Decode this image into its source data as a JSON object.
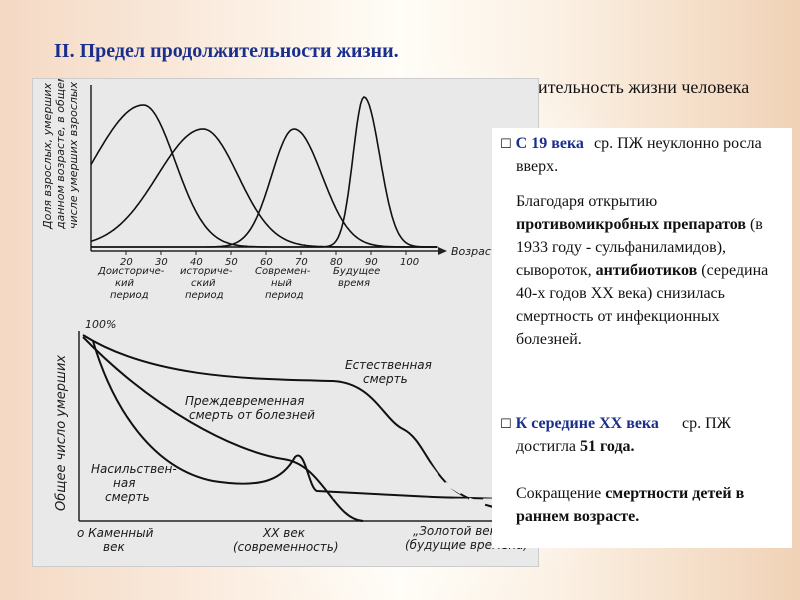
{
  "slide": {
    "title": "II. Предел продолжительности жизни.",
    "subtitle": "Средняя продолжительность жизни человека изменялась:"
  },
  "figure_top": {
    "ylabel": [
      "Доля взрослых, умерших в",
      "данном возрасте, в общем",
      "числе умерших взрослых"
    ],
    "xaxis_label": "Возраст",
    "ticks": [
      "20",
      "30",
      "40",
      "50",
      "60",
      "70",
      "80",
      "90",
      "100"
    ],
    "periods": [
      {
        "l1": "Доисториче-",
        "l2": "кий",
        "l3": "период"
      },
      {
        "l1": "историче-",
        "l2": "ский",
        "l3": "период"
      },
      {
        "l1": "Современ-",
        "l2": "ный",
        "l3": "период"
      },
      {
        "l1": "Будущее",
        "l2": "время",
        "l3": ""
      }
    ],
    "peak_ages": [
      25,
      42,
      68,
      88
    ]
  },
  "figure_bottom": {
    "ymax_label": "100%",
    "ylabel": "Общее число умерших",
    "natural_death": {
      "l1": "Естественная",
      "l2": "смерть"
    },
    "premature_death": {
      "l1": "Преждевременная",
      "l2": "смерть от болезней"
    },
    "violent_death": {
      "l1": "Насильствен-",
      "l2": "ная",
      "l3": "смерть"
    },
    "x_stone": {
      "l1": "о Каменный",
      "l2": "век"
    },
    "x_20c": {
      "l1": "XX век",
      "l2": "(современность)"
    },
    "x_golden": {
      "l1": "„Золотой век\"",
      "l2": "(будущие времена)"
    }
  },
  "panel": {
    "b1_head": "С 19 века",
    "b1_rest": " ср. ПЖ неуклонно росла вверх.",
    "p2_a": "Благодаря открытию ",
    "p2_b": "противомикробных препаратов",
    "p2_c": " (в 1933 году - сульфаниламидов), сывороток, ",
    "p2_d": "антибиотиков",
    "p2_e": " (середина 40-х годов ХХ века) снизилась смертность от инфекционных болезней.",
    "b2_head": "К середине ХХ века",
    "b2_mid": " ср. ПЖ достигла ",
    "b2_num": "51 года.",
    "p3_a": "Сокращение ",
    "p3_b": "смертности детей в раннем возрасте."
  },
  "colors": {
    "title": "#1a2f8c"
  }
}
